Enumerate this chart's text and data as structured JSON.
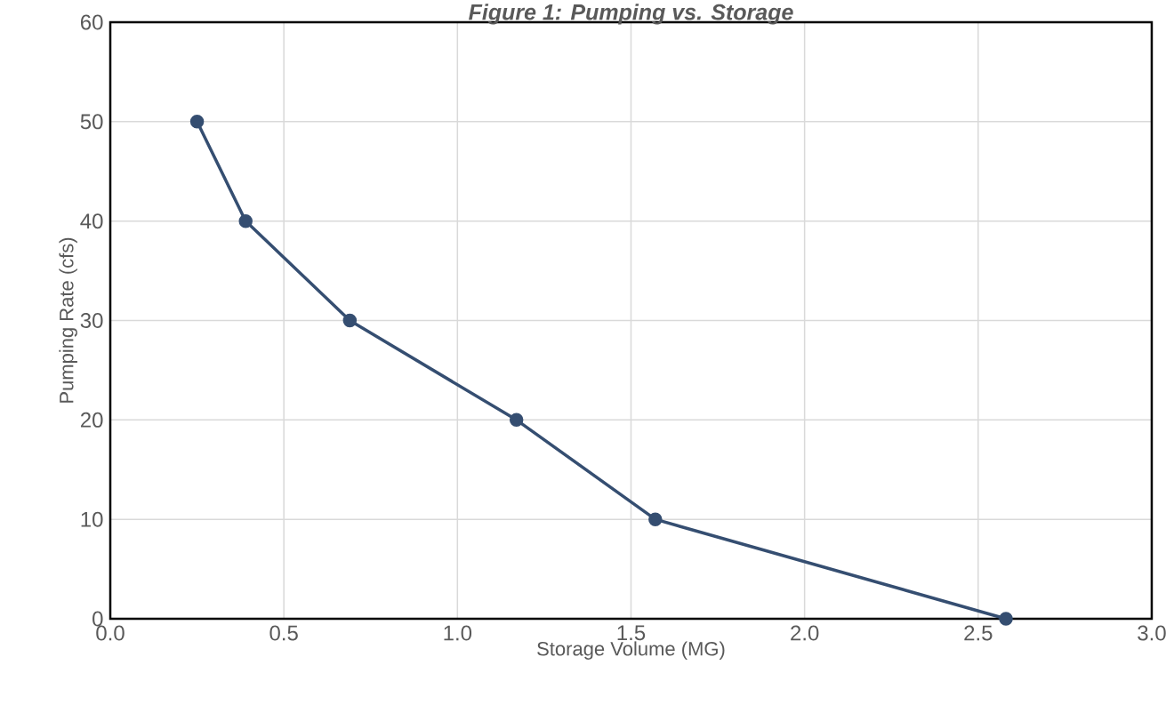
{
  "chart_data": {
    "type": "line",
    "title": "Figure 1: Pumping vs. Storage",
    "xlabel": "Storage Volume (MG)",
    "ylabel": "Pumping Rate (cfs)",
    "x": [
      0.25,
      0.39,
      0.69,
      1.17,
      1.57,
      2.58
    ],
    "series": [
      {
        "color": "#354e71",
        "values": [
          50,
          40,
          30,
          20,
          10,
          0
        ]
      }
    ],
    "xlim": [
      0,
      3
    ],
    "xticks": [
      {
        "value": 0,
        "label": "0.0"
      },
      {
        "value": 0.5,
        "label": "0.5"
      },
      {
        "value": 1,
        "label": "1.0"
      },
      {
        "value": 1.5,
        "label": "1.5"
      },
      {
        "value": 2,
        "label": "2.0"
      },
      {
        "value": 2.5,
        "label": "2.5"
      },
      {
        "value": 3,
        "label": "3.0"
      }
    ],
    "ylim": [
      0,
      60
    ],
    "yticks": [
      0,
      10,
      20,
      30,
      40,
      50,
      60
    ],
    "grid": true,
    "marker": "circle",
    "line_style": "solid"
  }
}
